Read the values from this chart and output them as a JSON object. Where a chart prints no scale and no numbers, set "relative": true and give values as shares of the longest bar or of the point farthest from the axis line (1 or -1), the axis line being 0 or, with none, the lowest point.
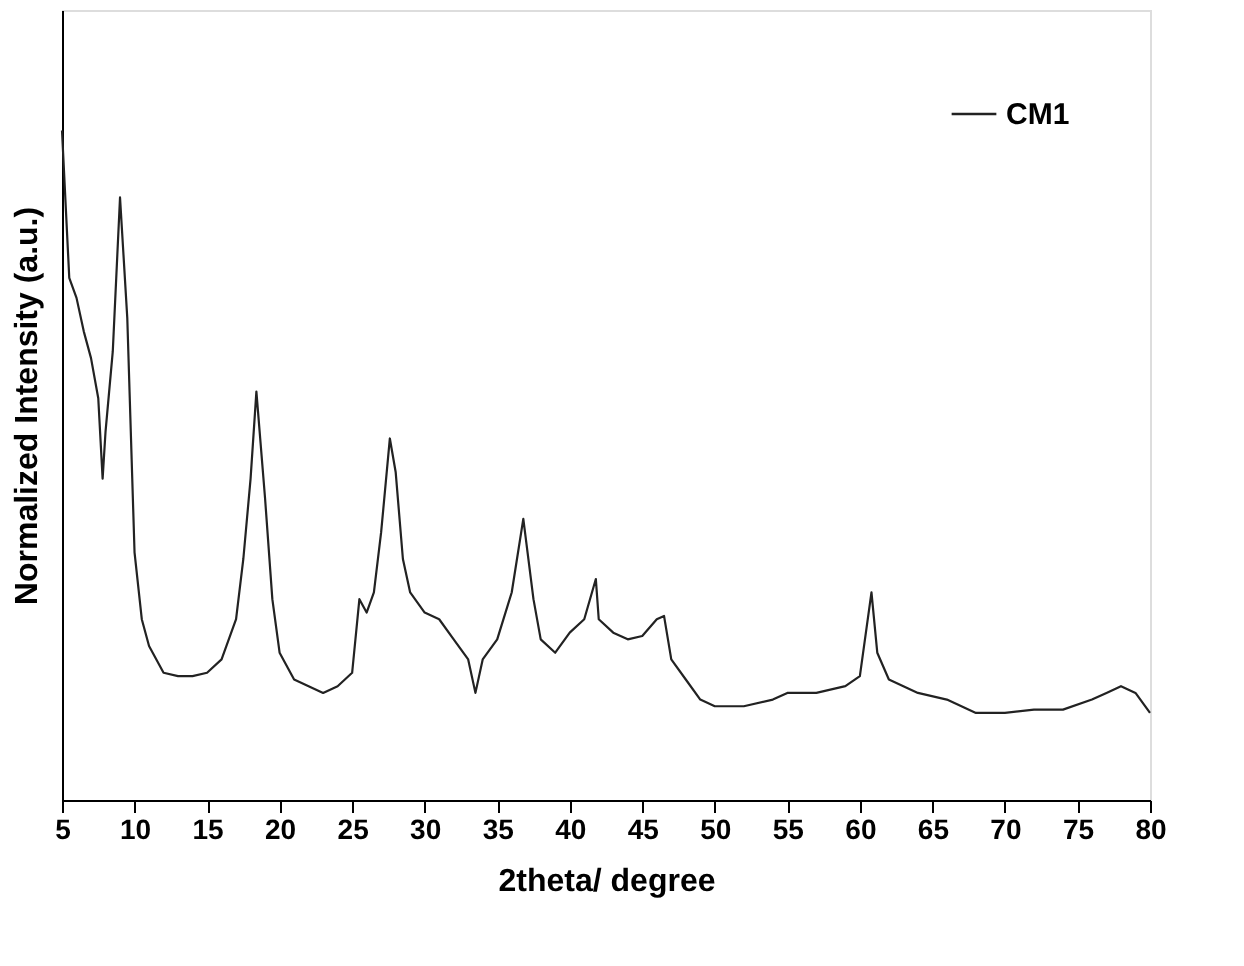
{
  "chart_data": {
    "type": "line",
    "xlabel": "2theta/ degree",
    "ylabel": "Normalized Intensity (a.u.)",
    "relative": true,
    "legend": "top right",
    "grid": false,
    "xlim": [
      5,
      80
    ],
    "xticks": [
      5,
      10,
      15,
      20,
      25,
      30,
      35,
      40,
      45,
      50,
      55,
      60,
      65,
      70,
      75,
      80
    ],
    "x": [
      5,
      5.5,
      6,
      6.5,
      7,
      7.5,
      7.8,
      8,
      8.5,
      9,
      9.5,
      10,
      10.5,
      11,
      12,
      13,
      14,
      15,
      16,
      17,
      17.5,
      18,
      18.4,
      19,
      19.5,
      20,
      21,
      22,
      23,
      24,
      25,
      25.5,
      26,
      26.5,
      27,
      27.6,
      28,
      28.5,
      29,
      30,
      31,
      32,
      33,
      33.5,
      34,
      35,
      36,
      36.8,
      37.5,
      38,
      39,
      40,
      41,
      41.8,
      42,
      43,
      44,
      45,
      46,
      46.5,
      47,
      48,
      49,
      50,
      52,
      54,
      55,
      57,
      59,
      60,
      60.8,
      61.2,
      62,
      64,
      66,
      68,
      70,
      72,
      74,
      76,
      77,
      78,
      79,
      80
    ],
    "series": [
      {
        "name": "CM1",
        "color": "#222222",
        "values": [
          1.0,
          0.78,
          0.75,
          0.7,
          0.66,
          0.6,
          0.48,
          0.55,
          0.67,
          0.9,
          0.72,
          0.37,
          0.27,
          0.23,
          0.19,
          0.185,
          0.185,
          0.19,
          0.21,
          0.27,
          0.36,
          0.48,
          0.61,
          0.45,
          0.3,
          0.22,
          0.18,
          0.17,
          0.16,
          0.17,
          0.19,
          0.3,
          0.28,
          0.31,
          0.4,
          0.54,
          0.49,
          0.36,
          0.31,
          0.28,
          0.27,
          0.24,
          0.21,
          0.16,
          0.21,
          0.24,
          0.31,
          0.42,
          0.3,
          0.24,
          0.22,
          0.25,
          0.27,
          0.33,
          0.27,
          0.25,
          0.24,
          0.245,
          0.27,
          0.275,
          0.21,
          0.18,
          0.15,
          0.14,
          0.14,
          0.15,
          0.16,
          0.16,
          0.17,
          0.185,
          0.31,
          0.22,
          0.18,
          0.16,
          0.15,
          0.13,
          0.13,
          0.135,
          0.135,
          0.15,
          0.16,
          0.17,
          0.16,
          0.13
        ]
      }
    ]
  }
}
